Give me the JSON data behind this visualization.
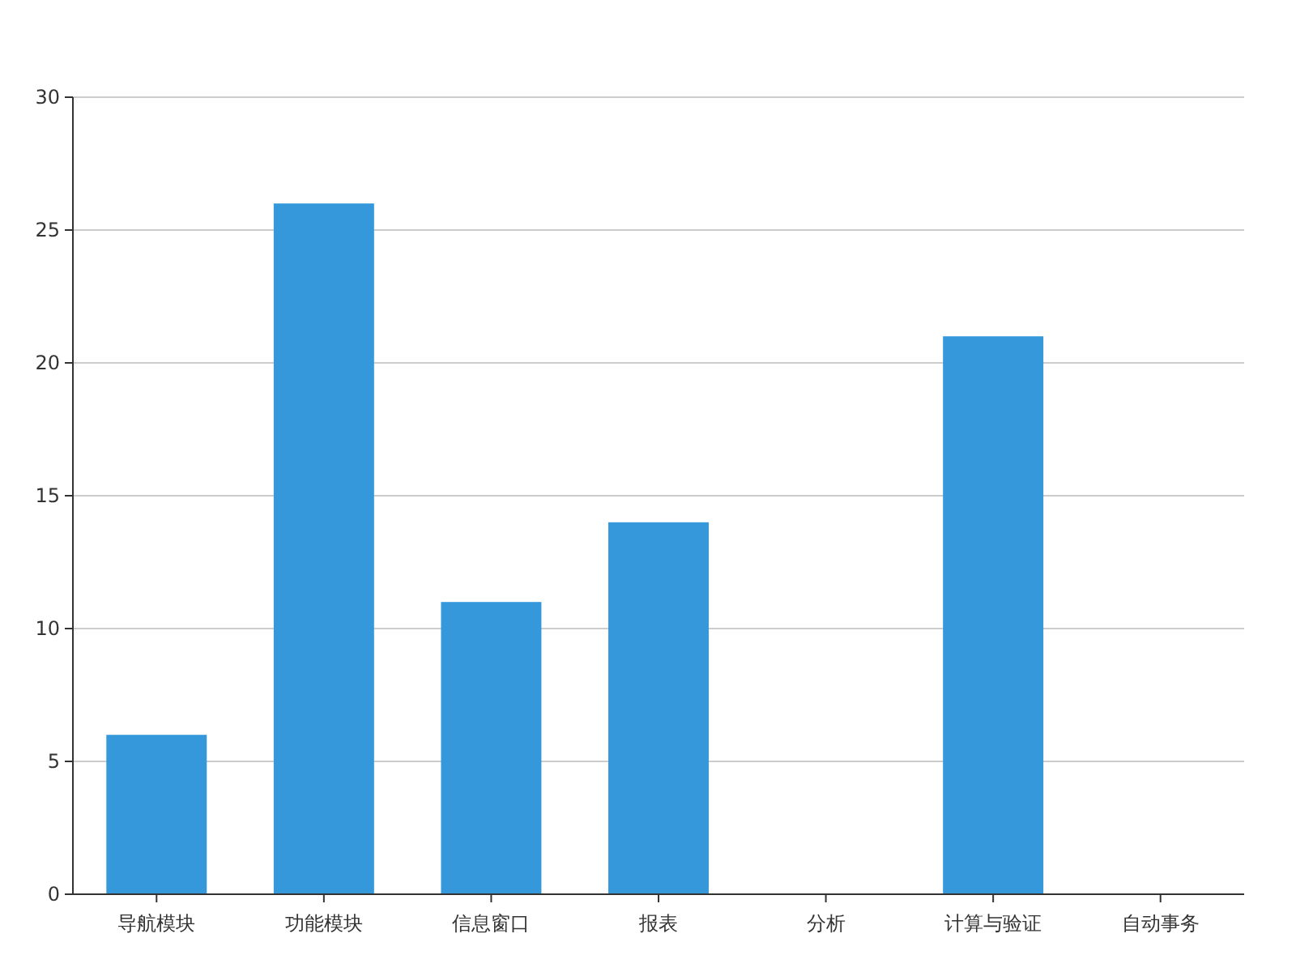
{
  "chart_data": {
    "type": "bar",
    "categories": [
      "导航模块",
      "功能模块",
      "信息窗口",
      "报表",
      "分析",
      "计算与验证",
      "自动事务"
    ],
    "values": [
      6,
      26,
      11,
      14,
      0,
      21,
      0
    ],
    "color": "#3498db",
    "ylim": [
      0,
      30
    ],
    "yticks": [
      0,
      5,
      10,
      15,
      20,
      25,
      30
    ],
    "grid": "y"
  }
}
